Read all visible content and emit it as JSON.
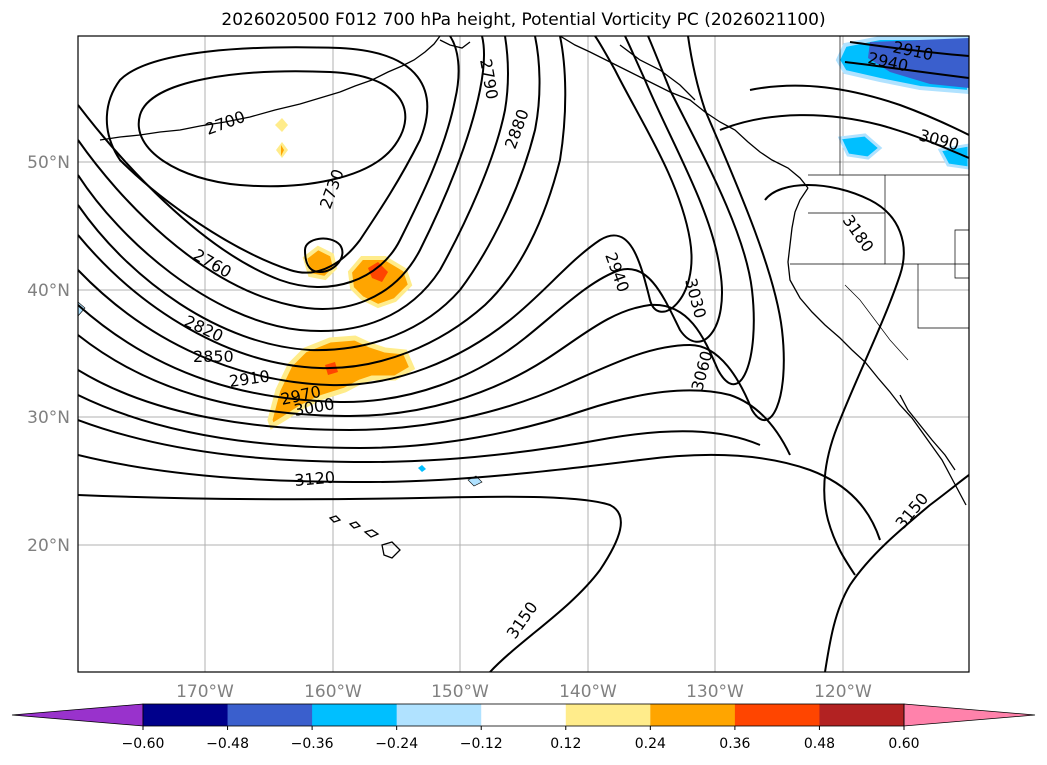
{
  "title": "2026020500 F012 700 hPa height, Potential Vorticity PC (2026021100)",
  "map": {
    "lat_labels": [
      "50°N",
      "40°N",
      "30°N",
      "20°N"
    ],
    "lon_labels": [
      "170°W",
      "160°W",
      "150°W",
      "140°W",
      "130°W",
      "120°W"
    ],
    "contour_labels": [
      "2700",
      "2730",
      "2760",
      "2790",
      "2820",
      "2850",
      "2880",
      "2910",
      "2940",
      "2970",
      "3000",
      "3030",
      "3060",
      "3090",
      "3120",
      "3150",
      "3150",
      "3180",
      "2910",
      "2940"
    ]
  },
  "colorbar": {
    "ticks": [
      "−0.60",
      "−0.48",
      "−0.36",
      "−0.24",
      "−0.12",
      "0.12",
      "0.24",
      "0.36",
      "0.48",
      "0.60"
    ],
    "colors": [
      "#9932cc",
      "#00008b",
      "#3a5fcd",
      "#00bfff",
      "#b0e2ff",
      "#ffffff",
      "#ffec8b",
      "#ffa500",
      "#ff4500",
      "#b22222",
      "#ff82ab"
    ]
  }
}
